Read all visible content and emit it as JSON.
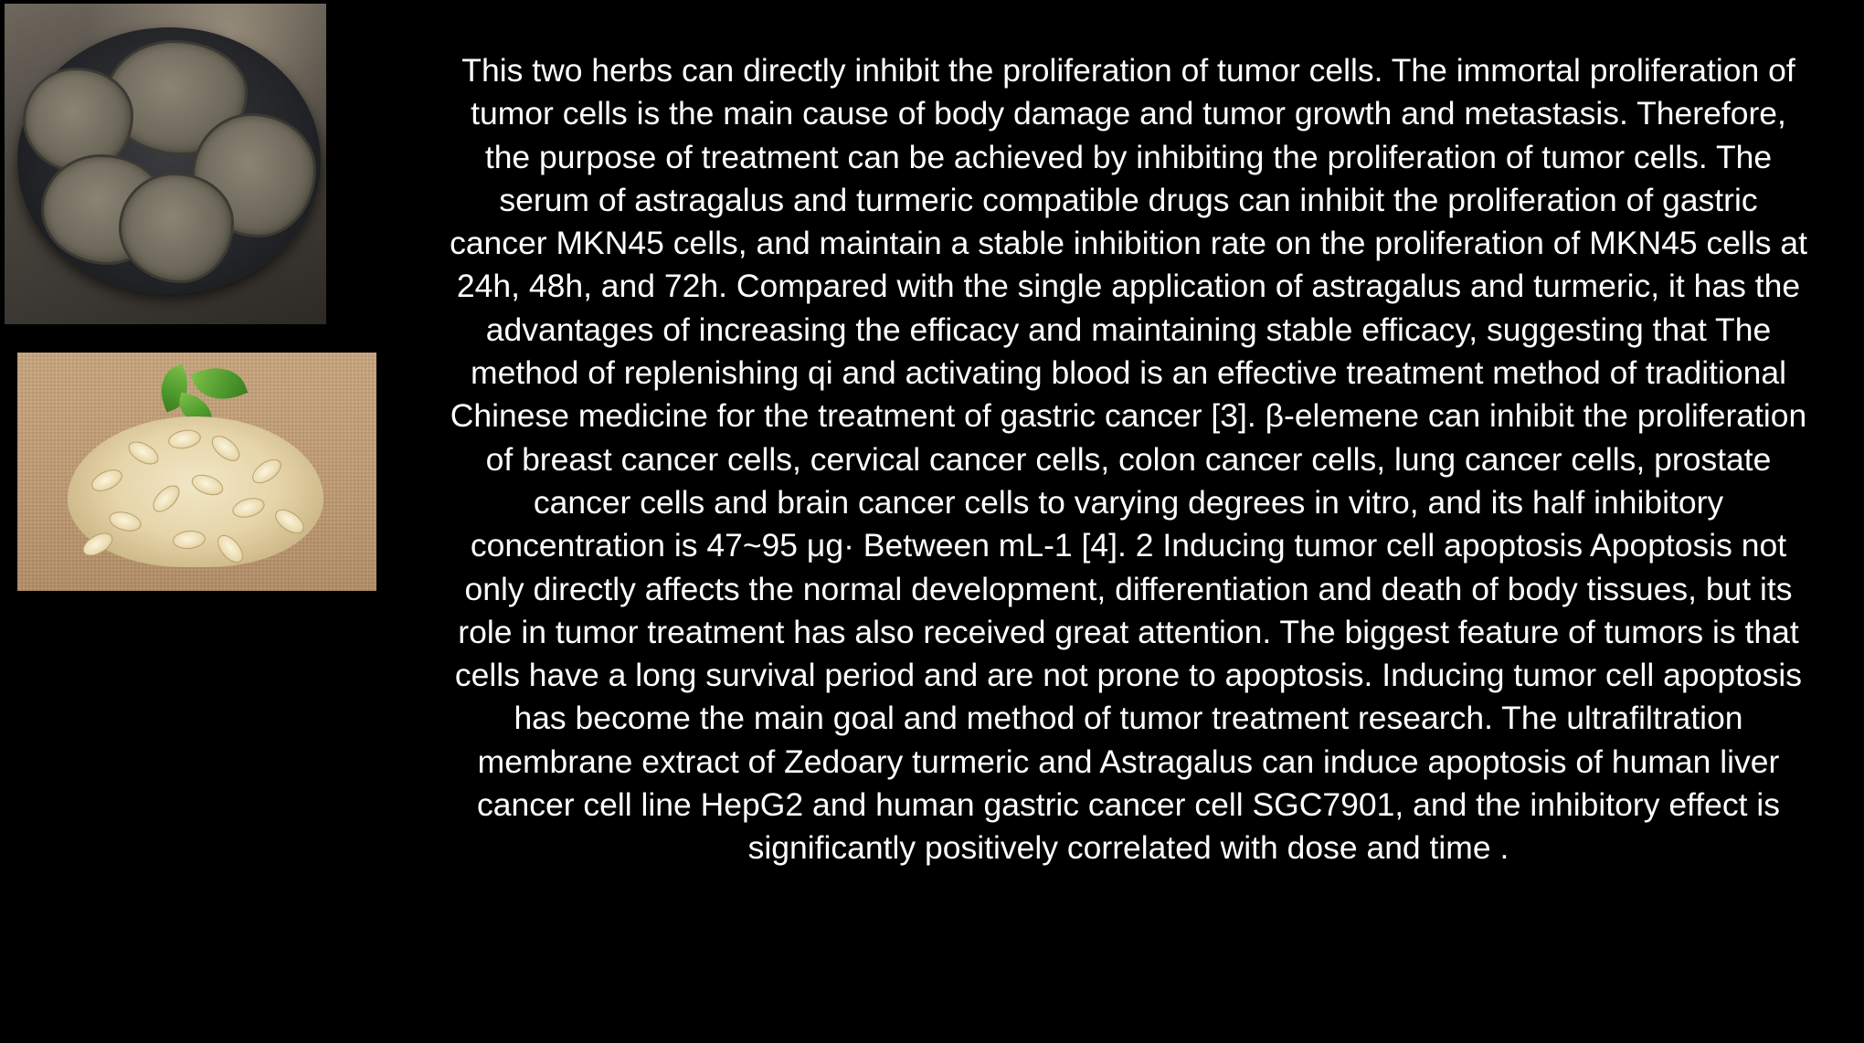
{
  "images": [
    {
      "name": "herb-slices-in-bowl"
    },
    {
      "name": "astragalus-slices-on-burlap"
    }
  ],
  "body_text": "This two herbs can directly inhibit the proliferation of tumor cells. The immortal proliferation of tumor cells is the main cause of body damage and tumor growth and metastasis. Therefore, the purpose of treatment can be achieved by inhibiting the proliferation of tumor cells. The serum of astragalus and turmeric compatible drugs can inhibit the proliferation of gastric cancer MKN45 cells, and maintain a stable inhibition rate on the proliferation of MKN45 cells at 24h, 48h, and 72h. Compared with the single application of astragalus and turmeric, it has the advantages of increasing the efficacy and maintaining stable efficacy, suggesting that The method of replenishing qi and activating blood is an effective treatment method of traditional Chinese medicine for the treatment of gastric cancer [3]. β-elemene can inhibit the proliferation of breast cancer cells, cervical cancer cells, colon cancer cells, lung cancer cells, prostate cancer cells and brain cancer cells to varying degrees in vitro, and its half inhibitory concentration is 47~95 μg· Between mL-1 [4]. 2 Inducing tumor cell apoptosis Apoptosis not only directly affects the normal development, differentiation and death of body tissues, but its role in tumor treatment has also received great attention. The biggest feature of tumors is that cells have a long survival period and are not prone to apoptosis. Inducing tumor cell apoptosis has become the main goal and method of tumor treatment research. The ultrafiltration membrane extract of Zedoary turmeric and Astragalus can induce apoptosis of human liver cancer cell line HepG2 and human gastric cancer cell SGC7901, and the inhibitory effect is significantly positively correlated with dose and time ."
}
